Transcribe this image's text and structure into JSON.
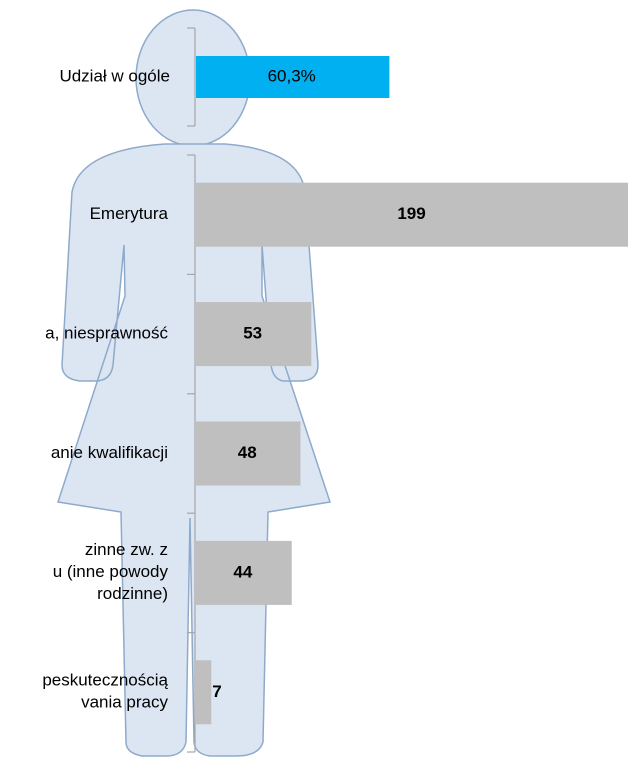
{
  "chart_data": {
    "type": "bar",
    "share": {
      "label": "Udział w ogóle",
      "value": 60.3,
      "value_label": "60,3%",
      "color": "#00b0f0",
      "xlim": [
        0,
        135
      ]
    },
    "categories": [
      "Emerytura",
      "a, niesprawność",
      "anie kwalifikacji",
      "zinne zw. z\nu (inne powody\nrodzinne)",
      "peskutecznością\nvania pracy"
    ],
    "values": [
      199,
      53,
      48,
      44,
      7
    ],
    "color": "#bfbfbf",
    "xlim": [
      0,
      199
    ]
  }
}
